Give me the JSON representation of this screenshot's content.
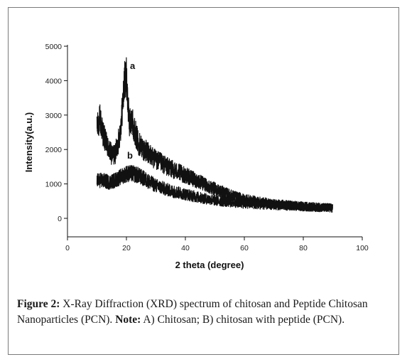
{
  "chart_data": {
    "type": "line",
    "xlabel": "2 theta (degree)",
    "ylabel": "Intensity(a.u.)",
    "xlim": [
      0,
      100
    ],
    "ylim": [
      -500,
      5000
    ],
    "xticks": [
      0,
      20,
      40,
      60,
      80,
      100
    ],
    "yticks": [
      0,
      1000,
      2000,
      3000,
      4000,
      5000
    ],
    "grid": false,
    "series": [
      {
        "name": "a",
        "x": [
          10,
          11,
          12,
          13,
          14,
          15,
          16,
          17,
          18,
          19,
          19.5,
          20,
          20.5,
          21,
          22,
          23,
          24,
          26,
          28,
          30,
          35,
          40,
          45,
          50,
          55,
          60,
          65,
          70,
          75,
          80,
          85,
          90
        ],
        "y": [
          2600,
          2900,
          2500,
          2200,
          2000,
          1850,
          1850,
          2100,
          2600,
          3600,
          4100,
          4100,
          3300,
          2800,
          2800,
          2500,
          2200,
          2000,
          1850,
          1700,
          1450,
          1250,
          1050,
          850,
          680,
          550,
          480,
          420,
          380,
          350,
          320,
          300
        ]
      },
      {
        "name": "b",
        "x": [
          10,
          12,
          14,
          16,
          18,
          20,
          22,
          24,
          26,
          28,
          30,
          35,
          40,
          45,
          50,
          55,
          60,
          65,
          70,
          75,
          80,
          85,
          90
        ],
        "y": [
          1100,
          1100,
          1050,
          1100,
          1200,
          1300,
          1300,
          1250,
          1150,
          1050,
          950,
          800,
          700,
          600,
          520,
          470,
          430,
          400,
          380,
          360,
          340,
          320,
          300
        ]
      }
    ],
    "annotations": [
      "a",
      "b"
    ]
  },
  "caption": {
    "figure_label": "Figure 2:",
    "text_part1": " X-Ray Diffraction (XRD) spectrum of chitosan and Peptide Chitosan Nanoparticles (PCN). ",
    "note_label": "Note:",
    "text_part2": " A) Chitosan; B) chitosan with peptide (PCN)."
  },
  "colors": {
    "line": "#111111",
    "axis": "#111111"
  }
}
